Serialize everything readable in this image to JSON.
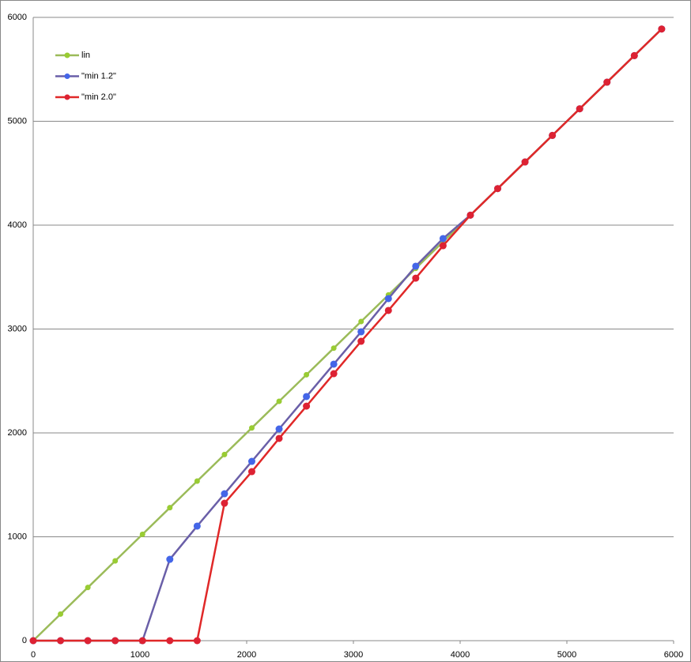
{
  "chart_data": {
    "type": "line",
    "x": [
      0,
      256,
      512,
      768,
      1024,
      1280,
      1536,
      1792,
      2048,
      2304,
      2560,
      2816,
      3072,
      3328,
      3584,
      3840,
      4096,
      4352,
      4608,
      4864,
      5120,
      5376,
      5632,
      5888
    ],
    "series": [
      {
        "name": "lin",
        "color": "#9bbb59",
        "marker_color": "#99cc33",
        "values": [
          0,
          256,
          512,
          768,
          1024,
          1280,
          1536,
          1792,
          2048,
          2304,
          2560,
          2816,
          3072,
          3328,
          3584,
          3840,
          4096,
          4352,
          4608,
          4864,
          5120,
          5376,
          5632,
          5888
        ]
      },
      {
        "name": "\"min 1.2\"",
        "color": "#6a5fa8",
        "marker_color": "#4466e8",
        "values": [
          0,
          0,
          0,
          0,
          0,
          783,
          1103,
          1414,
          1726,
          2038,
          2350,
          2662,
          2973,
          3293,
          3605,
          3871,
          4096,
          4352,
          4608,
          4864,
          5120,
          5376,
          5632,
          5888
        ]
      },
      {
        "name": "\"min 2.0\"",
        "color": "#e02828",
        "marker_color": "#dd2233",
        "values": [
          0,
          0,
          0,
          0,
          0,
          0,
          0,
          1323,
          1627,
          1947,
          2258,
          2570,
          2882,
          3179,
          3490,
          3802,
          4096,
          4352,
          4608,
          4864,
          5120,
          5376,
          5632,
          5888
        ]
      }
    ],
    "xlim": [
      0,
      6000
    ],
    "ylim": [
      0,
      6000
    ],
    "xticks": [
      0,
      1000,
      2000,
      3000,
      4000,
      5000,
      6000
    ],
    "yticks": [
      0,
      1000,
      2000,
      3000,
      4000,
      5000,
      6000
    ],
    "grid": true,
    "legend": "upper-left"
  }
}
